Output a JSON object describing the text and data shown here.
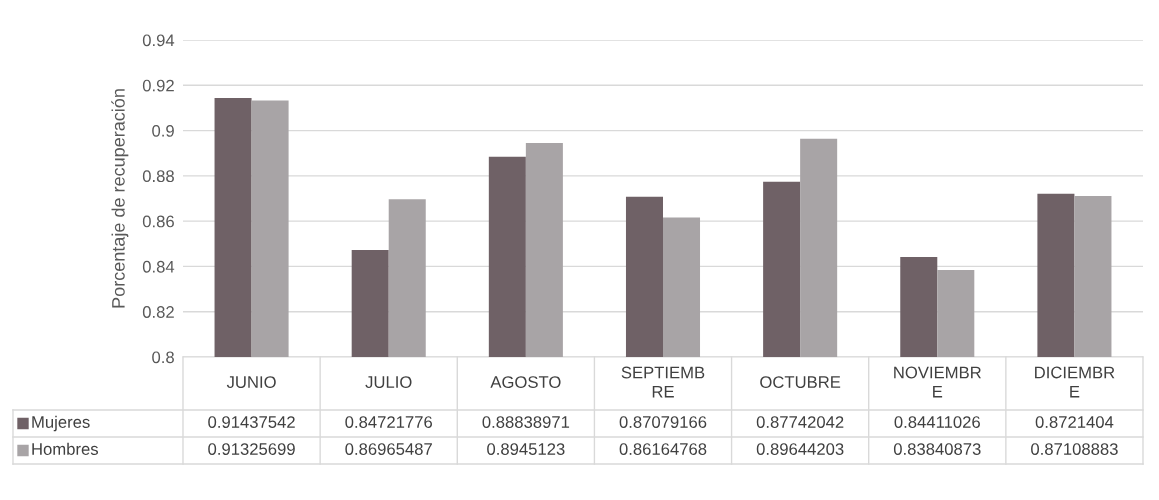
{
  "chart_data": {
    "type": "bar",
    "ylabel": "Porcentaje de recuperación",
    "categories": [
      "JUNIO",
      "JULIO",
      "AGOSTO",
      "SEPTIEMBRE",
      "OCTUBRE",
      "NOVIEMBRE",
      "DICIEMBRE"
    ],
    "series": [
      {
        "name": "Mujeres",
        "color": "#6f6166",
        "values": [
          0.91437542,
          0.84721776,
          0.88838971,
          0.87079166,
          0.87742042,
          0.84411026,
          0.8721404
        ]
      },
      {
        "name": "Hombres",
        "color": "#a8a4a6",
        "values": [
          0.91325699,
          0.86965487,
          0.8945123,
          0.86164768,
          0.89644203,
          0.83840873,
          0.87108883
        ]
      }
    ],
    "ylim": [
      0.8,
      0.94
    ],
    "yticks": [
      0.8,
      0.82,
      0.84,
      0.86,
      0.88,
      0.9,
      0.92,
      0.94
    ],
    "grid": "y",
    "legend": "bottom",
    "data_labels": true
  }
}
